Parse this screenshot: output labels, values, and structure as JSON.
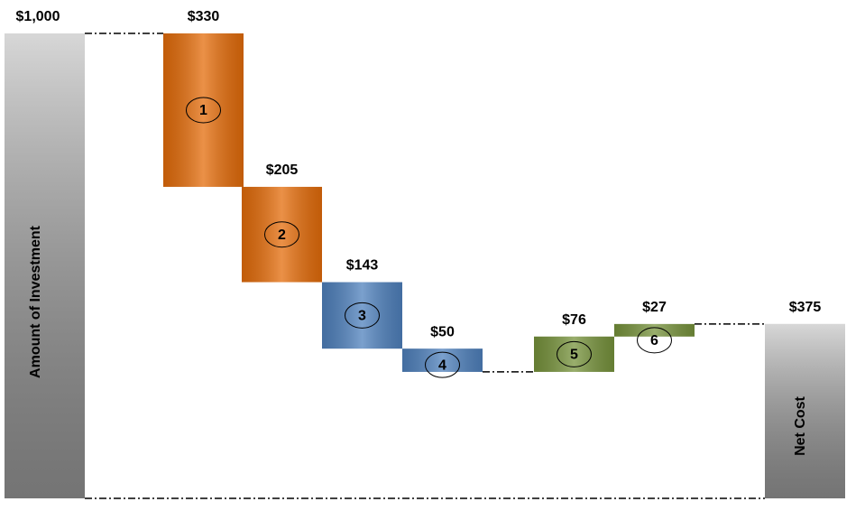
{
  "chart_data": {
    "type": "waterfall",
    "categories": [
      "Amount of Investment",
      "1",
      "2",
      "3",
      "4",
      "5",
      "6",
      "Net Cost"
    ],
    "measure": [
      "absolute",
      "relative",
      "relative",
      "relative",
      "relative",
      "relative",
      "relative",
      "total"
    ],
    "values": [
      1000,
      -330,
      -205,
      -143,
      -50,
      76,
      27,
      375
    ],
    "value_labels": [
      "$1,000",
      "$330",
      "$205",
      "$143",
      "$50",
      "$76",
      "$27",
      "$375"
    ],
    "colors": [
      "#a6a6a6",
      "#e46c0a",
      "#e46c0a",
      "#4f81bd",
      "#4f81bd",
      "#77933c",
      "#77933c",
      "#a6a6a6"
    ]
  }
}
